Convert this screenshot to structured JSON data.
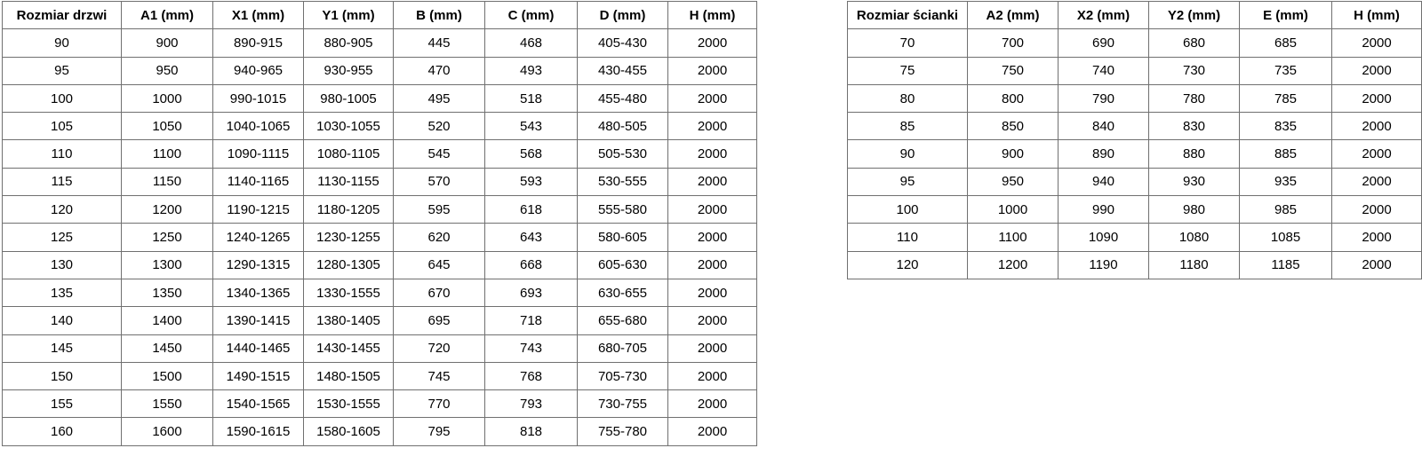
{
  "colors": {
    "background": "#ffffff",
    "border": "#707070",
    "text": "#000000"
  },
  "tables": [
    {
      "name": "doors-dimensions",
      "headers": [
        "Rozmiar drzwi",
        "A1 (mm)",
        "X1 (mm)",
        "Y1 (mm)",
        "B (mm)",
        "C (mm)",
        "D (mm)",
        "H (mm)"
      ],
      "rows": [
        [
          "90",
          "900",
          "890-915",
          "880-905",
          "445",
          "468",
          "405-430",
          "2000"
        ],
        [
          "95",
          "950",
          "940-965",
          "930-955",
          "470",
          "493",
          "430-455",
          "2000"
        ],
        [
          "100",
          "1000",
          "990-1015",
          "980-1005",
          "495",
          "518",
          "455-480",
          "2000"
        ],
        [
          "105",
          "1050",
          "1040-1065",
          "1030-1055",
          "520",
          "543",
          "480-505",
          "2000"
        ],
        [
          "110",
          "1100",
          "1090-1115",
          "1080-1105",
          "545",
          "568",
          "505-530",
          "2000"
        ],
        [
          "115",
          "1150",
          "1140-1165",
          "1130-1155",
          "570",
          "593",
          "530-555",
          "2000"
        ],
        [
          "120",
          "1200",
          "1190-1215",
          "1180-1205",
          "595",
          "618",
          "555-580",
          "2000"
        ],
        [
          "125",
          "1250",
          "1240-1265",
          "1230-1255",
          "620",
          "643",
          "580-605",
          "2000"
        ],
        [
          "130",
          "1300",
          "1290-1315",
          "1280-1305",
          "645",
          "668",
          "605-630",
          "2000"
        ],
        [
          "135",
          "1350",
          "1340-1365",
          "1330-1555",
          "670",
          "693",
          "630-655",
          "2000"
        ],
        [
          "140",
          "1400",
          "1390-1415",
          "1380-1405",
          "695",
          "718",
          "655-680",
          "2000"
        ],
        [
          "145",
          "1450",
          "1440-1465",
          "1430-1455",
          "720",
          "743",
          "680-705",
          "2000"
        ],
        [
          "150",
          "1500",
          "1490-1515",
          "1480-1505",
          "745",
          "768",
          "705-730",
          "2000"
        ],
        [
          "155",
          "1550",
          "1540-1565",
          "1530-1555",
          "770",
          "793",
          "730-755",
          "2000"
        ],
        [
          "160",
          "1600",
          "1590-1615",
          "1580-1605",
          "795",
          "818",
          "755-780",
          "2000"
        ]
      ]
    },
    {
      "name": "wall-panel-dimensions",
      "headers": [
        "Rozmiar ścianki",
        "A2 (mm)",
        "X2 (mm)",
        "Y2 (mm)",
        "E (mm)",
        "H (mm)"
      ],
      "rows": [
        [
          "70",
          "700",
          "690",
          "680",
          "685",
          "2000"
        ],
        [
          "75",
          "750",
          "740",
          "730",
          "735",
          "2000"
        ],
        [
          "80",
          "800",
          "790",
          "780",
          "785",
          "2000"
        ],
        [
          "85",
          "850",
          "840",
          "830",
          "835",
          "2000"
        ],
        [
          "90",
          "900",
          "890",
          "880",
          "885",
          "2000"
        ],
        [
          "95",
          "950",
          "940",
          "930",
          "935",
          "2000"
        ],
        [
          "100",
          "1000",
          "990",
          "980",
          "985",
          "2000"
        ],
        [
          "110",
          "1100",
          "1090",
          "1080",
          "1085",
          "2000"
        ],
        [
          "120",
          "1200",
          "1190",
          "1180",
          "1185",
          "2000"
        ]
      ]
    }
  ]
}
